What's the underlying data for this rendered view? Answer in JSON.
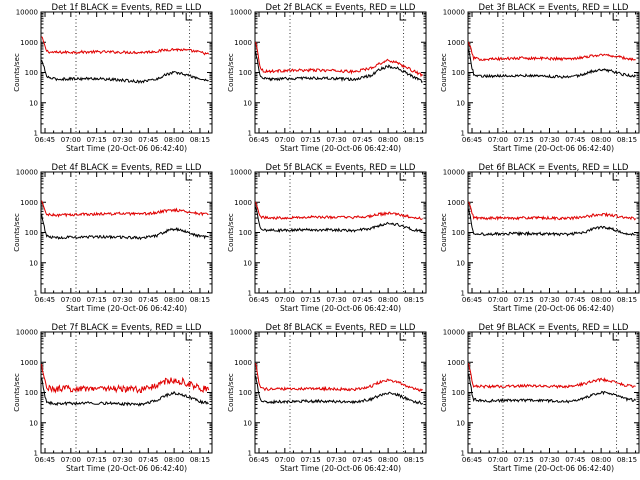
{
  "chart_data": [
    {
      "type": "line",
      "title": "Det 1f BLACK = Events, RED = LLD",
      "xlabel": "Start Time (20-Oct-06 06:42:40)",
      "ylabel": "Counts/sec",
      "yscale": "log",
      "ylim": [
        1,
        10000
      ],
      "xticks": [
        "06:45",
        "07:00",
        "07:15",
        "07:30",
        "07:45",
        "08:00",
        "08:15"
      ],
      "yticks": [
        "1",
        "10",
        "100",
        "1000",
        "10000"
      ],
      "grid": false,
      "x": [
        "06:43",
        "06:44",
        "06:45",
        "06:46",
        "06:48",
        "06:52",
        "07:00",
        "07:15",
        "07:30",
        "07:40",
        "07:50",
        "07:55",
        "08:00",
        "08:05",
        "08:10",
        "08:15",
        "08:20"
      ],
      "series": [
        {
          "color": "#e00000",
          "values": [
            1500,
            1100,
            700,
            520,
            470,
            460,
            470,
            480,
            470,
            460,
            500,
            560,
            580,
            560,
            520,
            470,
            400
          ]
        },
        {
          "color": "#000000",
          "values": [
            250,
            180,
            110,
            75,
            65,
            60,
            62,
            63,
            55,
            50,
            60,
            85,
            100,
            90,
            75,
            60,
            55
          ]
        }
      ]
    },
    {
      "type": "line",
      "title": "Det 2f BLACK = Events, RED = LLD",
      "xlabel": "Start Time (20-Oct-06 06:42:40)",
      "ylabel": "Counts/sec",
      "yscale": "log",
      "ylim": [
        1,
        10000
      ],
      "xticks": [
        "06:45",
        "07:00",
        "07:15",
        "07:30",
        "07:45",
        "08:00",
        "08:15"
      ],
      "yticks": [
        "1",
        "10",
        "100",
        "1000",
        "10000"
      ],
      "grid": false,
      "x": [
        "06:43",
        "06:44",
        "06:45",
        "06:46",
        "06:48",
        "06:52",
        "07:00",
        "07:15",
        "07:30",
        "07:40",
        "07:50",
        "07:55",
        "08:00",
        "08:05",
        "08:10",
        "08:15",
        "08:20"
      ],
      "series": [
        {
          "color": "#e00000",
          "values": [
            1000,
            600,
            250,
            130,
            110,
            110,
            115,
            120,
            115,
            105,
            140,
            200,
            250,
            220,
            150,
            110,
            80
          ]
        },
        {
          "color": "#000000",
          "values": [
            500,
            250,
            110,
            70,
            62,
            60,
            62,
            66,
            62,
            58,
            80,
            125,
            160,
            140,
            100,
            70,
            50
          ]
        }
      ]
    },
    {
      "type": "line",
      "title": "Det 3f BLACK = Events, RED = LLD",
      "xlabel": "Start Time (20-Oct-06 06:42:40)",
      "ylabel": "Counts/sec",
      "yscale": "log",
      "ylim": [
        1,
        10000
      ],
      "xticks": [
        "06:45",
        "07:00",
        "07:15",
        "07:30",
        "07:45",
        "08:00",
        "08:15"
      ],
      "yticks": [
        "1",
        "10",
        "100",
        "1000",
        "10000"
      ],
      "grid": false,
      "x": [
        "06:43",
        "06:44",
        "06:45",
        "06:46",
        "06:48",
        "06:52",
        "07:00",
        "07:15",
        "07:30",
        "07:40",
        "07:50",
        "07:55",
        "08:00",
        "08:05",
        "08:10",
        "08:15",
        "08:20"
      ],
      "series": [
        {
          "color": "#e00000",
          "values": [
            1000,
            700,
            420,
            300,
            280,
            275,
            280,
            300,
            290,
            280,
            320,
            360,
            380,
            370,
            330,
            290,
            260
          ]
        },
        {
          "color": "#000000",
          "values": [
            550,
            300,
            140,
            90,
            80,
            75,
            78,
            80,
            75,
            70,
            85,
            110,
            125,
            115,
            95,
            80,
            75
          ]
        }
      ]
    },
    {
      "type": "line",
      "title": "Det 4f BLACK = Events, RED = LLD",
      "xlabel": "Start Time (20-Oct-06 06:42:40)",
      "ylabel": "Counts/sec",
      "yscale": "log",
      "ylim": [
        1,
        10000
      ],
      "xticks": [
        "06:45",
        "07:00",
        "07:15",
        "07:30",
        "07:45",
        "08:00",
        "08:15"
      ],
      "yticks": [
        "1",
        "10",
        "100",
        "1000",
        "10000"
      ],
      "grid": false,
      "x": [
        "06:43",
        "06:44",
        "06:45",
        "06:46",
        "06:48",
        "06:52",
        "07:00",
        "07:15",
        "07:30",
        "07:40",
        "07:50",
        "07:55",
        "08:00",
        "08:05",
        "08:10",
        "08:15",
        "08:20"
      ],
      "series": [
        {
          "color": "#e00000",
          "values": [
            1100,
            800,
            500,
            400,
            380,
            370,
            390,
            410,
            420,
            400,
            450,
            520,
            560,
            520,
            460,
            420,
            400
          ]
        },
        {
          "color": "#000000",
          "values": [
            400,
            220,
            110,
            75,
            70,
            68,
            70,
            72,
            70,
            66,
            80,
            110,
            130,
            115,
            90,
            75,
            70
          ]
        }
      ]
    },
    {
      "type": "line",
      "title": "Det 5f BLACK = Events, RED = LLD",
      "xlabel": "Start Time (20-Oct-06 06:42:40)",
      "ylabel": "Counts/sec",
      "yscale": "log",
      "ylim": [
        1,
        10000
      ],
      "xticks": [
        "06:45",
        "07:00",
        "07:15",
        "07:30",
        "07:45",
        "08:00",
        "08:15"
      ],
      "yticks": [
        "1",
        "10",
        "100",
        "1000",
        "10000"
      ],
      "grid": false,
      "x": [
        "06:43",
        "06:44",
        "06:45",
        "06:46",
        "06:48",
        "06:52",
        "07:00",
        "07:15",
        "07:30",
        "07:40",
        "07:50",
        "07:55",
        "08:00",
        "08:05",
        "08:10",
        "08:15",
        "08:20"
      ],
      "series": [
        {
          "color": "#e00000",
          "values": [
            1000,
            750,
            450,
            330,
            310,
            300,
            310,
            320,
            320,
            310,
            350,
            400,
            430,
            400,
            350,
            310,
            290
          ]
        },
        {
          "color": "#000000",
          "values": [
            700,
            400,
            200,
            130,
            120,
            118,
            120,
            125,
            120,
            115,
            135,
            170,
            200,
            185,
            150,
            120,
            110
          ]
        }
      ]
    },
    {
      "type": "line",
      "title": "Det 6f BLACK = Events, RED = LLD",
      "xlabel": "Start Time (20-Oct-06 06:42:40)",
      "ylabel": "Counts/sec",
      "yscale": "log",
      "ylim": [
        1,
        10000
      ],
      "xticks": [
        "06:45",
        "07:00",
        "07:15",
        "07:30",
        "07:45",
        "08:00",
        "08:15"
      ],
      "yticks": [
        "1",
        "10",
        "100",
        "1000",
        "10000"
      ],
      "grid": false,
      "x": [
        "06:43",
        "06:44",
        "06:45",
        "06:46",
        "06:48",
        "06:52",
        "07:00",
        "07:15",
        "07:30",
        "07:40",
        "07:50",
        "07:55",
        "08:00",
        "08:05",
        "08:10",
        "08:15",
        "08:20"
      ],
      "series": [
        {
          "color": "#e00000",
          "values": [
            1000,
            700,
            420,
            320,
            300,
            295,
            300,
            305,
            300,
            290,
            320,
            370,
            400,
            380,
            340,
            300,
            290
          ]
        },
        {
          "color": "#000000",
          "values": [
            600,
            350,
            160,
            100,
            90,
            88,
            90,
            92,
            90,
            85,
            100,
            130,
            150,
            135,
            110,
            90,
            85
          ]
        }
      ]
    },
    {
      "type": "line",
      "title": "Det 7f BLACK = Events, RED = LLD",
      "xlabel": "Start Time (20-Oct-06 06:42:40)",
      "ylabel": "Counts/sec",
      "yscale": "log",
      "ylim": [
        1,
        10000
      ],
      "xticks": [
        "06:45",
        "07:00",
        "07:15",
        "07:30",
        "07:45",
        "08:00",
        "08:15"
      ],
      "yticks": [
        "1",
        "10",
        "100",
        "1000",
        "10000"
      ],
      "grid": false,
      "x": [
        "06:43",
        "06:44",
        "06:45",
        "06:46",
        "06:48",
        "06:52",
        "07:00",
        "07:15",
        "07:30",
        "07:40",
        "07:50",
        "07:55",
        "08:00",
        "08:05",
        "08:10",
        "08:15",
        "08:20"
      ],
      "series": [
        {
          "color": "#e00000",
          "values": [
            800,
            450,
            220,
            150,
            135,
            130,
            135,
            140,
            130,
            125,
            170,
            230,
            260,
            230,
            180,
            140,
            120
          ]
        },
        {
          "color": "#000000",
          "values": [
            300,
            150,
            70,
            48,
            44,
            42,
            44,
            45,
            42,
            40,
            55,
            80,
            95,
            85,
            65,
            50,
            45
          ]
        }
      ]
    },
    {
      "type": "line",
      "title": "Det 8f BLACK = Events, RED = LLD",
      "xlabel": "Start Time (20-Oct-06 06:42:40)",
      "ylabel": "Counts/sec",
      "yscale": "log",
      "ylim": [
        1,
        10000
      ],
      "xticks": [
        "06:45",
        "07:00",
        "07:15",
        "07:30",
        "07:45",
        "08:00",
        "08:15"
      ],
      "yticks": [
        "1",
        "10",
        "100",
        "1000",
        "10000"
      ],
      "grid": false,
      "x": [
        "06:43",
        "06:44",
        "06:45",
        "06:46",
        "06:48",
        "06:52",
        "07:00",
        "07:15",
        "07:30",
        "07:40",
        "07:50",
        "07:55",
        "08:00",
        "08:05",
        "08:10",
        "08:15",
        "08:20"
      ],
      "series": [
        {
          "color": "#e00000",
          "values": [
            900,
            500,
            220,
            140,
            130,
            128,
            130,
            135,
            130,
            125,
            160,
            220,
            260,
            230,
            170,
            130,
            120
          ]
        },
        {
          "color": "#000000",
          "values": [
            350,
            180,
            80,
            55,
            50,
            48,
            50,
            52,
            50,
            47,
            60,
            80,
            95,
            85,
            65,
            50,
            45
          ]
        }
      ]
    },
    {
      "type": "line",
      "title": "Det 9f BLACK = Events, RED = LLD",
      "xlabel": "Start Time (20-Oct-06 06:42:40)",
      "ylabel": "Counts/sec",
      "yscale": "log",
      "ylim": [
        1,
        10000
      ],
      "xticks": [
        "06:45",
        "07:00",
        "07:15",
        "07:30",
        "07:45",
        "08:00",
        "08:15"
      ],
      "yticks": [
        "1",
        "10",
        "100",
        "1000",
        "10000"
      ],
      "grid": false,
      "x": [
        "06:43",
        "06:44",
        "06:45",
        "06:46",
        "06:48",
        "06:52",
        "07:00",
        "07:15",
        "07:30",
        "07:40",
        "07:50",
        "07:55",
        "08:00",
        "08:05",
        "08:10",
        "08:15",
        "08:20"
      ],
      "series": [
        {
          "color": "#e00000",
          "values": [
            900,
            500,
            240,
            170,
            160,
            158,
            160,
            165,
            160,
            155,
            190,
            240,
            270,
            250,
            200,
            170,
            160
          ]
        },
        {
          "color": "#000000",
          "values": [
            400,
            200,
            90,
            60,
            55,
            52,
            54,
            55,
            53,
            50,
            62,
            85,
            100,
            92,
            75,
            60,
            55
          ]
        }
      ]
    }
  ]
}
